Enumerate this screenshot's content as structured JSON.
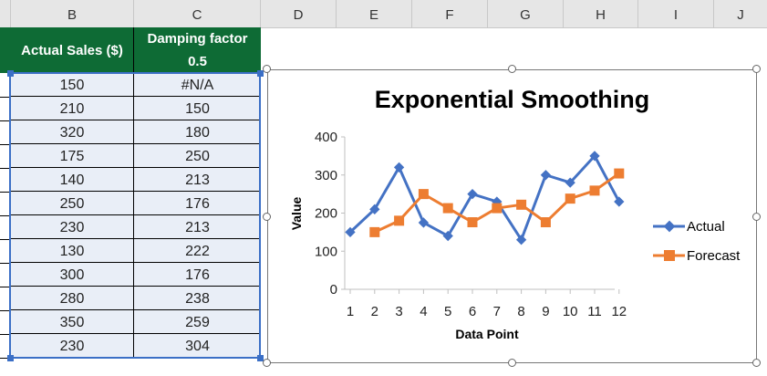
{
  "spreadsheet": {
    "columns": [
      "B",
      "C",
      "D",
      "E",
      "F",
      "G",
      "H",
      "I",
      "J"
    ],
    "table": {
      "headers": [
        "Actual Sales ($)",
        "Damping factor",
        "0.5"
      ],
      "rows": [
        {
          "actual": "150",
          "forecast": "#N/A"
        },
        {
          "actual": "210",
          "forecast": "150"
        },
        {
          "actual": "320",
          "forecast": "180"
        },
        {
          "actual": "175",
          "forecast": "250"
        },
        {
          "actual": "140",
          "forecast": "213"
        },
        {
          "actual": "250",
          "forecast": "176"
        },
        {
          "actual": "230",
          "forecast": "213"
        },
        {
          "actual": "130",
          "forecast": "222"
        },
        {
          "actual": "300",
          "forecast": "176"
        },
        {
          "actual": "280",
          "forecast": "238"
        },
        {
          "actual": "350",
          "forecast": "259"
        },
        {
          "actual": "230",
          "forecast": "304"
        }
      ]
    }
  },
  "chart_data": {
    "type": "line",
    "title": "Exponential Smoothing",
    "xlabel": "Data Point",
    "ylabel": "Value",
    "categories": [
      "1",
      "2",
      "3",
      "4",
      "5",
      "6",
      "7",
      "8",
      "9",
      "10",
      "11",
      "12"
    ],
    "ylim": [
      0,
      400
    ],
    "yticks": [
      "0",
      "100",
      "200",
      "300",
      "400"
    ],
    "grid": false,
    "legend_position": "right",
    "series": [
      {
        "name": "Actual",
        "color": "#4472c4",
        "marker": "diamond",
        "values": [
          150,
          210,
          320,
          175,
          140,
          250,
          230,
          130,
          300,
          280,
          350,
          230
        ]
      },
      {
        "name": "Forecast",
        "color": "#ed7d31",
        "marker": "square",
        "values": [
          null,
          150,
          180,
          250,
          213,
          176,
          213,
          222,
          176,
          238,
          259,
          304
        ]
      }
    ]
  }
}
